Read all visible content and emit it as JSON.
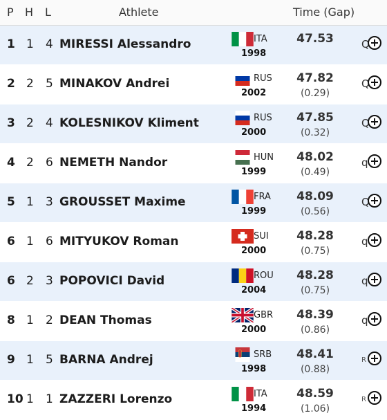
{
  "header": {
    "pos": "P",
    "heat": "H",
    "lane": "L",
    "athlete": "Athlete",
    "time": "Time (Gap)"
  },
  "rows": [
    {
      "pos": "1",
      "heat": "1",
      "lane": "4",
      "name": "MIRESSI Alessandro",
      "noc": "ITA",
      "yob": "1998",
      "time": "47.53",
      "gap": "",
      "qual": "Q",
      "flag": "ita-flag-icon",
      "bg": "alt"
    },
    {
      "pos": "2",
      "heat": "2",
      "lane": "5",
      "name": "MINAKOV Andrei",
      "noc": "RUS",
      "yob": "2002",
      "time": "47.82",
      "gap": "(0.29)",
      "qual": "Q",
      "flag": "rus-flag-icon",
      "bg": "plain"
    },
    {
      "pos": "3",
      "heat": "2",
      "lane": "4",
      "name": "KOLESNIKOV Kliment",
      "noc": "RUS",
      "yob": "2000",
      "time": "47.85",
      "gap": "(0.32)",
      "qual": "Q",
      "flag": "rus-flag-icon",
      "bg": "alt"
    },
    {
      "pos": "4",
      "heat": "2",
      "lane": "6",
      "name": "NEMETH Nandor",
      "noc": "HUN",
      "yob": "1999",
      "time": "48.02",
      "gap": "(0.49)",
      "qual": "q",
      "flag": "hun-flag-icon",
      "bg": "plain"
    },
    {
      "pos": "5",
      "heat": "1",
      "lane": "3",
      "name": "GROUSSET Maxime",
      "noc": "FRA",
      "yob": "1999",
      "time": "48.09",
      "gap": "(0.56)",
      "qual": "Q",
      "flag": "fra-flag-icon",
      "bg": "alt"
    },
    {
      "pos": "6",
      "heat": "1",
      "lane": "6",
      "name": "MITYUKOV Roman",
      "noc": "SUI",
      "yob": "2000",
      "time": "48.28",
      "gap": "(0.75)",
      "qual": "q",
      "flag": "sui-flag-icon",
      "bg": "plain"
    },
    {
      "pos": "6",
      "heat": "2",
      "lane": "3",
      "name": "POPOVICI David",
      "noc": "ROU",
      "yob": "2004",
      "time": "48.28",
      "gap": "(0.75)",
      "qual": "q",
      "flag": "rou-flag-icon",
      "bg": "alt"
    },
    {
      "pos": "8",
      "heat": "1",
      "lane": "2",
      "name": "DEAN Thomas",
      "noc": "GBR",
      "yob": "2000",
      "time": "48.39",
      "gap": "(0.86)",
      "qual": "q",
      "flag": "gbr-flag-icon",
      "bg": "plain"
    },
    {
      "pos": "9",
      "heat": "1",
      "lane": "5",
      "name": "BARNA Andrej",
      "noc": "SRB",
      "yob": "1998",
      "time": "48.41",
      "gap": "(0.88)",
      "qual": "R",
      "flag": "srb-flag-icon",
      "bg": "alt"
    },
    {
      "pos": "10",
      "heat": "1",
      "lane": "1",
      "name": "ZAZZERI Lorenzo",
      "noc": "ITA",
      "yob": "1994",
      "time": "48.59",
      "gap": "(1.06)",
      "qual": "R",
      "flag": "ita-flag-icon",
      "bg": "plain"
    }
  ]
}
